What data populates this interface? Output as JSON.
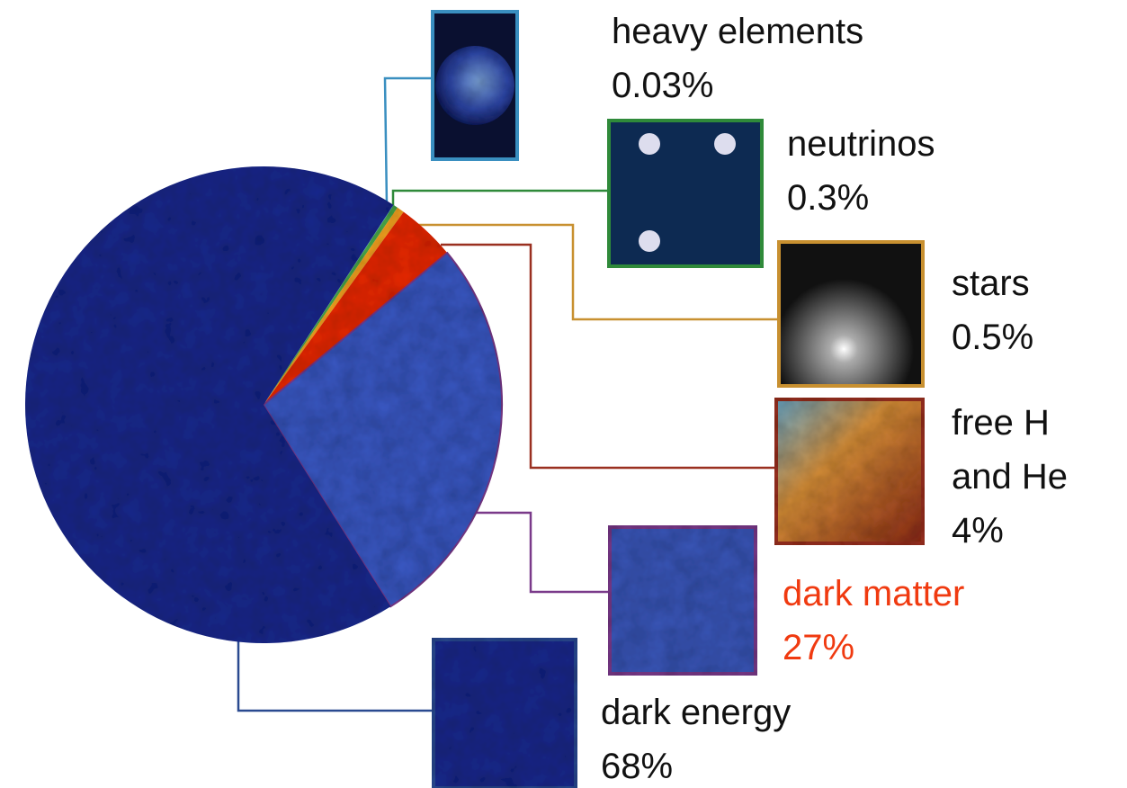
{
  "chart_data": {
    "type": "pie",
    "categories": [
      "heavy elements",
      "neutrinos",
      "stars",
      "free H and He",
      "dark matter",
      "dark energy"
    ],
    "values": [
      0.03,
      0.3,
      0.5,
      4,
      27,
      68
    ],
    "value_labels": [
      "0.03%",
      "0.3%",
      "0.5%",
      "4%",
      "27%",
      "68%"
    ],
    "colors": [
      "#3aa0d8",
      "#49a84a",
      "#f0a020",
      "#e82a10",
      "#3a58c2",
      "#1c2a8c"
    ],
    "label_colors": [
      "#111111",
      "#111111",
      "#111111",
      "#111111",
      "#f03a10",
      "#111111"
    ]
  }
}
